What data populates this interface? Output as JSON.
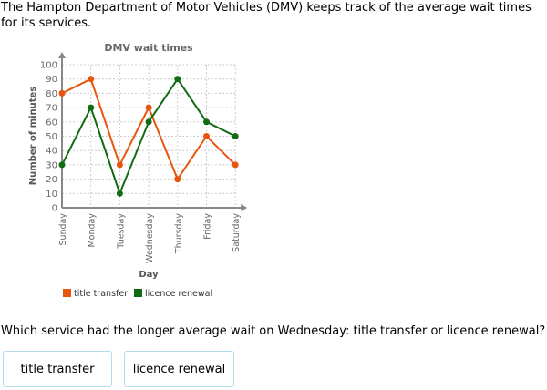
{
  "intro": "The Hampton Department of Motor Vehicles (DMV) keeps track of the average wait times for its services.",
  "question": "Which service had the longer average wait on Wednesday: title transfer or licence renewal?",
  "choices": [
    "title transfer",
    "licence renewal"
  ],
  "chart_data": {
    "type": "line",
    "title": "DMV wait times",
    "xlabel": "Day",
    "ylabel": "Number of minutes",
    "categories": [
      "Sunday",
      "Monday",
      "Tuesday",
      "Wednesday",
      "Thursday",
      "Friday",
      "Saturday"
    ],
    "ylim": [
      0,
      100
    ],
    "yticks": [
      0,
      10,
      20,
      30,
      40,
      50,
      60,
      70,
      80,
      90,
      100
    ],
    "grid": true,
    "legend": "bottom",
    "series": [
      {
        "name": "title transfer",
        "color": "#e8540c",
        "values": [
          80,
          90,
          30,
          70,
          20,
          50,
          30
        ]
      },
      {
        "name": "licence renewal",
        "color": "#116b11",
        "values": [
          30,
          70,
          10,
          60,
          90,
          60,
          50
        ]
      }
    ]
  }
}
